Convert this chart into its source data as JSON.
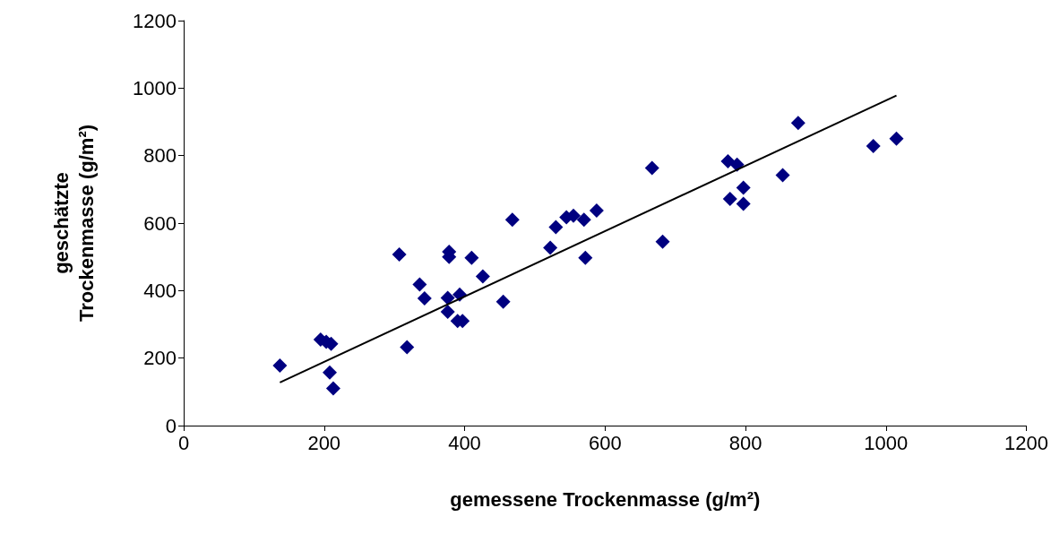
{
  "chart_data": {
    "type": "scatter",
    "xlabel": "gemessene Trockenmasse (g/m²)",
    "ylabel": "geschätzte\nTrockenmasse (g/m²)",
    "xlim": [
      0,
      1200
    ],
    "ylim": [
      0,
      1200
    ],
    "xticks": [
      0,
      200,
      400,
      600,
      800,
      1000,
      1200
    ],
    "yticks": [
      0,
      200,
      400,
      600,
      800,
      1000,
      1200
    ],
    "grid": false,
    "marker": "diamond",
    "series": [
      {
        "color": "#000080",
        "x": [
          137,
          195,
          203,
          210,
          208,
          213,
          307,
          318,
          336,
          343,
          376,
          376,
          378,
          378,
          390,
          397,
          393,
          410,
          426,
          455,
          468,
          522,
          530,
          545,
          555,
          570,
          572,
          588,
          667,
          682,
          775,
          778,
          788,
          797,
          797,
          853,
          875,
          982,
          1015
        ],
        "values": [
          178,
          255,
          248,
          242,
          157,
          110,
          507,
          232,
          418,
          377,
          378,
          337,
          515,
          500,
          310,
          310,
          388,
          497,
          442,
          367,
          610,
          527,
          588,
          617,
          622,
          610,
          497,
          637,
          763,
          545,
          783,
          672,
          773,
          705,
          657,
          742,
          897,
          828,
          850
        ]
      },
      {
        "type": "line",
        "color": "#000000",
        "marker": "none",
        "line_style": "solid",
        "x": [
          137,
          1015
        ],
        "values": [
          128,
          978
        ]
      }
    ]
  }
}
